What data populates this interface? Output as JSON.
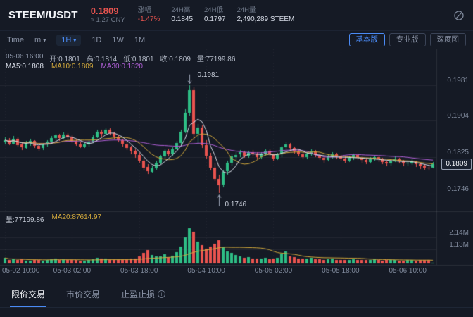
{
  "theme": {
    "up": "#2ebd85",
    "down": "#e9544f",
    "accent": "#4a8af4",
    "ma5": "#d8dde8",
    "ma10": "#d2a93c",
    "ma30": "#b05fd6",
    "grid": "rgba(255,255,255,0.06)",
    "annotation": "#9aa3b5"
  },
  "header": {
    "pair": "STEEM/USDT",
    "price": "0.1809",
    "price_cny": "≈ 1.27 CNY",
    "stats": [
      {
        "label": "涨幅",
        "value": "-1.47%"
      },
      {
        "label": "24H高",
        "value": "0.1845"
      },
      {
        "label": "24H低",
        "value": "0.1797"
      },
      {
        "label": "24H量",
        "value": "2,490,289 STEEM"
      }
    ]
  },
  "toolbar": {
    "time": "Time",
    "minutes": "m",
    "hour": "1H",
    "day": "1D",
    "week": "1W",
    "month": "1M",
    "basic": "基本版",
    "pro": "专业版",
    "depth": "深度图"
  },
  "chart_info": {
    "time": "05-06 16:00",
    "open": "开:0.1801",
    "high": "高:0.1814",
    "low": "低:0.1801",
    "close": "收:0.1809",
    "volume": "量:77199.86",
    "ma5": "MA5:0.1808",
    "ma10": "MA10:0.1809",
    "ma30": "MA30:0.1820",
    "vol": "量:77199.86",
    "vol_ma20": "MA20:87614.97"
  },
  "chart_data": {
    "type": "candlestick",
    "pair": "STEEM/USDT",
    "interval": "1H",
    "current_price": 0.1809,
    "current_price_label": "0.1809",
    "price_axis": {
      "min": 0.1715,
      "max": 0.2005,
      "ticks": [
        {
          "v": 0.1981,
          "label": "0.1981"
        },
        {
          "v": 0.1904,
          "label": "0.1904"
        },
        {
          "v": 0.1825,
          "label": "0.1825"
        },
        {
          "v": 0.1746,
          "label": "0.1746"
        }
      ]
    },
    "volume_axis": {
      "max": 3.2,
      "ticks": [
        {
          "v": 2.14,
          "label": "2.14M"
        },
        {
          "v": 1.13,
          "label": "1.13M"
        }
      ]
    },
    "x_ticks": [
      {
        "i": 0,
        "label": "05-02 10:00"
      },
      {
        "i": 16,
        "label": "05-03 02:00"
      },
      {
        "i": 32,
        "label": "05-03 18:00"
      },
      {
        "i": 48,
        "label": "05-04 10:00"
      },
      {
        "i": 64,
        "label": "05-05 02:00"
      },
      {
        "i": 80,
        "label": "05-05 18:00"
      },
      {
        "i": 96,
        "label": "05-06 10:00"
      }
    ],
    "annotations": {
      "high": {
        "label": "0.1981"
      },
      "low": {
        "label": "0.1746"
      }
    },
    "candles": [
      [
        0.1858,
        0.1868,
        0.1852,
        0.1862,
        0.45
      ],
      [
        0.1862,
        0.1866,
        0.185,
        0.1855,
        0.3
      ],
      [
        0.1855,
        0.187,
        0.1852,
        0.1865,
        0.35
      ],
      [
        0.1865,
        0.1868,
        0.1846,
        0.1852,
        0.28
      ],
      [
        0.1852,
        0.1856,
        0.184,
        0.1846,
        0.32
      ],
      [
        0.1846,
        0.186,
        0.1843,
        0.1856,
        0.25
      ],
      [
        0.1856,
        0.1865,
        0.185,
        0.186,
        0.22
      ],
      [
        0.186,
        0.1862,
        0.1845,
        0.185,
        0.26
      ],
      [
        0.185,
        0.1854,
        0.1838,
        0.1844,
        0.3
      ],
      [
        0.1844,
        0.1856,
        0.184,
        0.1852,
        0.24
      ],
      [
        0.1852,
        0.1862,
        0.1848,
        0.1858,
        0.28
      ],
      [
        0.1858,
        0.187,
        0.1854,
        0.1866,
        0.35
      ],
      [
        0.1866,
        0.1876,
        0.1862,
        0.1872,
        0.4
      ],
      [
        0.1872,
        0.1875,
        0.186,
        0.1866,
        0.3
      ],
      [
        0.1866,
        0.1878,
        0.1862,
        0.1874,
        0.33
      ],
      [
        0.1874,
        0.1877,
        0.1864,
        0.1869,
        0.27
      ],
      [
        0.1869,
        0.1872,
        0.1855,
        0.186,
        0.31
      ],
      [
        0.186,
        0.1864,
        0.1848,
        0.1853,
        0.26
      ],
      [
        0.1853,
        0.1858,
        0.1844,
        0.1848,
        0.24
      ],
      [
        0.1848,
        0.1856,
        0.1845,
        0.1852,
        0.22
      ],
      [
        0.1852,
        0.1862,
        0.1848,
        0.1858,
        0.28
      ],
      [
        0.1858,
        0.1872,
        0.1855,
        0.1868,
        0.36
      ],
      [
        0.1868,
        0.1884,
        0.1865,
        0.188,
        0.48
      ],
      [
        0.188,
        0.1885,
        0.187,
        0.1875,
        0.38
      ],
      [
        0.1875,
        0.1888,
        0.1872,
        0.1884,
        0.42
      ],
      [
        0.1884,
        0.1887,
        0.1872,
        0.1877,
        0.3
      ],
      [
        0.1877,
        0.188,
        0.1863,
        0.1869,
        0.28
      ],
      [
        0.1869,
        0.1873,
        0.1856,
        0.1861,
        0.26
      ],
      [
        0.1861,
        0.1865,
        0.1848,
        0.1853,
        0.3
      ],
      [
        0.1853,
        0.1857,
        0.184,
        0.1846,
        0.34
      ],
      [
        0.1846,
        0.185,
        0.1832,
        0.1838,
        0.38
      ],
      [
        0.1838,
        0.1842,
        0.1824,
        0.183,
        0.42
      ],
      [
        0.183,
        0.1834,
        0.1812,
        0.1818,
        0.6
      ],
      [
        0.1818,
        0.1822,
        0.1796,
        0.1803,
        0.85
      ],
      [
        0.1803,
        0.181,
        0.1788,
        0.1794,
        1.1
      ],
      [
        0.1794,
        0.1806,
        0.179,
        0.1801,
        0.7
      ],
      [
        0.1801,
        0.1818,
        0.1798,
        0.1813,
        0.55
      ],
      [
        0.1813,
        0.183,
        0.181,
        0.1826,
        0.6
      ],
      [
        0.1826,
        0.1842,
        0.1822,
        0.1838,
        0.75
      ],
      [
        0.1838,
        0.1843,
        0.1826,
        0.1831,
        0.5
      ],
      [
        0.1831,
        0.1846,
        0.1828,
        0.1842,
        0.65
      ],
      [
        0.1842,
        0.186,
        0.1838,
        0.1856,
        0.9
      ],
      [
        0.1856,
        0.1885,
        0.1852,
        0.188,
        1.4
      ],
      [
        0.188,
        0.1928,
        0.1876,
        0.1921,
        2.1
      ],
      [
        0.1921,
        0.1981,
        0.1915,
        0.197,
        2.85
      ],
      [
        0.197,
        0.1976,
        0.1862,
        0.1875,
        2.6
      ],
      [
        0.1875,
        0.1896,
        0.1852,
        0.1889,
        1.8
      ],
      [
        0.1889,
        0.1893,
        0.1844,
        0.1851,
        1.5
      ],
      [
        0.1851,
        0.1862,
        0.1822,
        0.1828,
        1.2
      ],
      [
        0.1828,
        0.1834,
        0.1796,
        0.1802,
        1.35
      ],
      [
        0.1802,
        0.1812,
        0.1772,
        0.1778,
        1.6
      ],
      [
        0.1778,
        0.1786,
        0.1746,
        0.1765,
        1.9
      ],
      [
        0.1765,
        0.1798,
        0.176,
        0.1793,
        1.3
      ],
      [
        0.1793,
        0.1818,
        0.1788,
        0.1812,
        1.0
      ],
      [
        0.1812,
        0.1831,
        0.1806,
        0.1826,
        0.85
      ],
      [
        0.1826,
        0.1836,
        0.1818,
        0.183,
        0.7
      ],
      [
        0.183,
        0.184,
        0.1824,
        0.1835,
        0.6
      ],
      [
        0.1835,
        0.1838,
        0.1822,
        0.1828,
        0.45
      ],
      [
        0.1828,
        0.1839,
        0.1824,
        0.1836,
        0.5
      ],
      [
        0.1836,
        0.184,
        0.1826,
        0.1831,
        0.4
      ],
      [
        0.1831,
        0.1835,
        0.182,
        0.1825,
        0.38
      ],
      [
        0.1825,
        0.1836,
        0.1821,
        0.1832,
        0.42
      ],
      [
        0.1832,
        0.1842,
        0.1828,
        0.1838,
        0.48
      ],
      [
        0.1838,
        0.1841,
        0.1825,
        0.183,
        0.36
      ],
      [
        0.183,
        0.1833,
        0.1818,
        0.1823,
        0.4
      ],
      [
        0.1823,
        0.1834,
        0.1819,
        0.183,
        0.45
      ],
      [
        0.183,
        0.185,
        0.1826,
        0.1846,
        0.8
      ],
      [
        0.1846,
        0.1857,
        0.1841,
        0.1852,
        0.95
      ],
      [
        0.1852,
        0.1856,
        0.1838,
        0.1844,
        0.6
      ],
      [
        0.1844,
        0.1848,
        0.1832,
        0.1837,
        0.5
      ],
      [
        0.1837,
        0.1841,
        0.1826,
        0.1831,
        0.42
      ],
      [
        0.1831,
        0.1835,
        0.182,
        0.1825,
        0.38
      ],
      [
        0.1825,
        0.1836,
        0.1821,
        0.1832,
        0.4
      ],
      [
        0.1832,
        0.1841,
        0.1828,
        0.1837,
        0.44
      ],
      [
        0.1837,
        0.184,
        0.1824,
        0.1829,
        0.36
      ],
      [
        0.1829,
        0.1832,
        0.1818,
        0.1823,
        0.32
      ],
      [
        0.1823,
        0.1827,
        0.1814,
        0.1819,
        0.3
      ],
      [
        0.1819,
        0.183,
        0.1816,
        0.1826,
        0.34
      ],
      [
        0.1826,
        0.1835,
        0.1822,
        0.1831,
        0.38
      ],
      [
        0.1831,
        0.1834,
        0.1821,
        0.1826,
        0.3
      ],
      [
        0.1826,
        0.1829,
        0.1817,
        0.1822,
        0.28
      ],
      [
        0.1822,
        0.1826,
        0.1813,
        0.1818,
        0.26
      ],
      [
        0.1818,
        0.1828,
        0.1815,
        0.1824,
        0.3
      ],
      [
        0.1824,
        0.1833,
        0.182,
        0.1829,
        0.34
      ],
      [
        0.1829,
        0.1832,
        0.1819,
        0.1824,
        0.28
      ],
      [
        0.1824,
        0.1827,
        0.1814,
        0.1819,
        0.26
      ],
      [
        0.1819,
        0.1822,
        0.181,
        0.1815,
        0.28
      ],
      [
        0.1815,
        0.1825,
        0.1812,
        0.1821,
        0.3
      ],
      [
        0.1821,
        0.183,
        0.1818,
        0.1825,
        0.32
      ],
      [
        0.1825,
        0.1828,
        0.1815,
        0.182,
        0.26
      ],
      [
        0.182,
        0.1823,
        0.181,
        0.1814,
        0.24
      ],
      [
        0.1814,
        0.1818,
        0.1806,
        0.1811,
        0.26
      ],
      [
        0.1811,
        0.1821,
        0.1808,
        0.1817,
        0.28
      ],
      [
        0.1817,
        0.1826,
        0.1814,
        0.1821,
        0.3
      ],
      [
        0.1821,
        0.1824,
        0.1812,
        0.1816,
        0.24
      ],
      [
        0.1816,
        0.1819,
        0.1806,
        0.1811,
        0.22
      ],
      [
        0.1811,
        0.1815,
        0.1804,
        0.1812,
        0.26
      ],
      [
        0.1812,
        0.182,
        0.1808,
        0.1816,
        0.28
      ],
      [
        0.1816,
        0.1818,
        0.1805,
        0.181,
        0.24
      ],
      [
        0.181,
        0.1813,
        0.18,
        0.1806,
        0.26
      ],
      [
        0.1806,
        0.181,
        0.1798,
        0.1802,
        0.28
      ],
      [
        0.1802,
        0.1806,
        0.1796,
        0.1801,
        0.3
      ],
      [
        0.1801,
        0.1814,
        0.1801,
        0.1809,
        0.08
      ]
    ]
  },
  "bottom_tabs": [
    {
      "label": "限价交易"
    },
    {
      "label": "市价交易"
    },
    {
      "label": "止盈止损"
    }
  ]
}
